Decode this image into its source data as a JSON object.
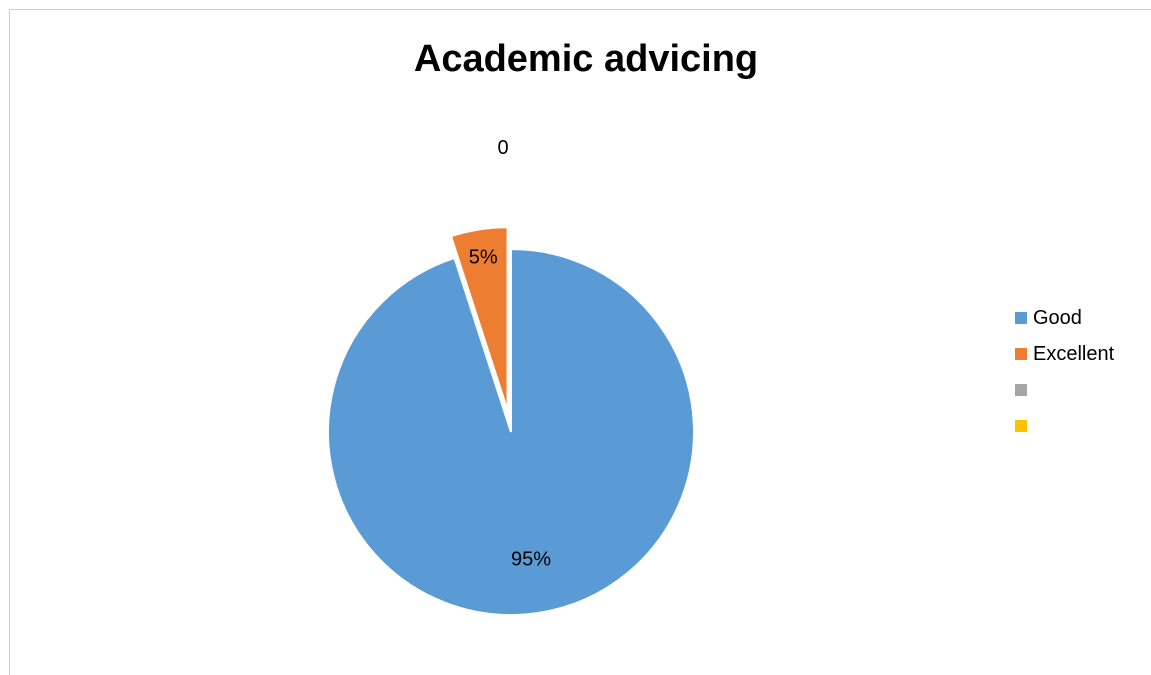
{
  "chart_data": {
    "type": "pie",
    "title": "Academic advicing",
    "slices": [
      {
        "label": "Good",
        "value": 95,
        "data_label": "95%",
        "color": "#5B9BD5",
        "exploded": false
      },
      {
        "label": "Excellent",
        "value": 5,
        "data_label": "5%",
        "color": "#ED7D31",
        "exploded": true
      },
      {
        "label": "",
        "value": 0,
        "data_label": "0",
        "color": "#A5A5A5",
        "exploded": false
      },
      {
        "label": "",
        "value": 0,
        "data_label": "",
        "color": "#FFC000",
        "exploded": false
      }
    ],
    "legend": {
      "position": "right"
    }
  }
}
